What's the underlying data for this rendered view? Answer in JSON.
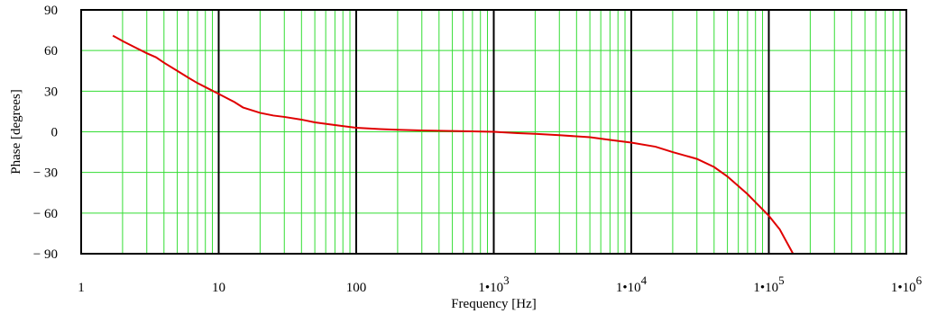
{
  "chart_data": {
    "type": "line",
    "xscale": "log",
    "xlabel": "Frequency  [Hz]",
    "ylabel": "Phase  [degrees]",
    "xlim": [
      1,
      1000000
    ],
    "ylim": [
      -90,
      90
    ],
    "grid": true,
    "colors": {
      "line": "#e00000",
      "minor_grid": "#33dd33",
      "major_grid": "#000000",
      "frame": "#000000"
    },
    "x_ticks": [
      {
        "value": 1,
        "base": "1",
        "exp": ""
      },
      {
        "value": 10,
        "base": "10",
        "exp": ""
      },
      {
        "value": 100,
        "base": "100",
        "exp": ""
      },
      {
        "value": 1000,
        "base": "1•10",
        "exp": "3"
      },
      {
        "value": 10000,
        "base": "1•10",
        "exp": "4"
      },
      {
        "value": 100000,
        "base": "1•10",
        "exp": "5"
      },
      {
        "value": 1000000,
        "base": "1•10",
        "exp": "6"
      }
    ],
    "y_ticks": [
      {
        "value": 90,
        "label": "90"
      },
      {
        "value": 60,
        "label": "60"
      },
      {
        "value": 30,
        "label": "30"
      },
      {
        "value": 0,
        "label": "0"
      },
      {
        "value": -30,
        "label": "− 30"
      },
      {
        "value": -60,
        "label": "− 60"
      },
      {
        "value": -90,
        "label": "− 90"
      }
    ],
    "series": [
      {
        "x": [
          1.7,
          2,
          2.5,
          3,
          3.5,
          4,
          5,
          6,
          7,
          8,
          10,
          13,
          15,
          20,
          25,
          30,
          40,
          50,
          70,
          100,
          150,
          200,
          300,
          500,
          700,
          1000,
          1500,
          2000,
          3000,
          5000,
          7000,
          10000,
          15000,
          20000,
          30000,
          40000,
          50000,
          60000,
          70000,
          80000,
          100000,
          120000,
          150000
        ],
        "y": [
          71,
          67,
          62,
          58,
          55,
          51,
          45,
          40,
          36,
          33,
          28,
          22,
          18,
          14,
          12,
          11,
          9,
          7,
          5,
          3,
          2,
          1.5,
          1,
          0.6,
          0.3,
          0,
          -1,
          -1.5,
          -2.5,
          -4,
          -6,
          -8,
          -11,
          -15,
          -20,
          -26,
          -33,
          -40,
          -46,
          -52,
          -62,
          -72,
          -90
        ]
      }
    ]
  }
}
